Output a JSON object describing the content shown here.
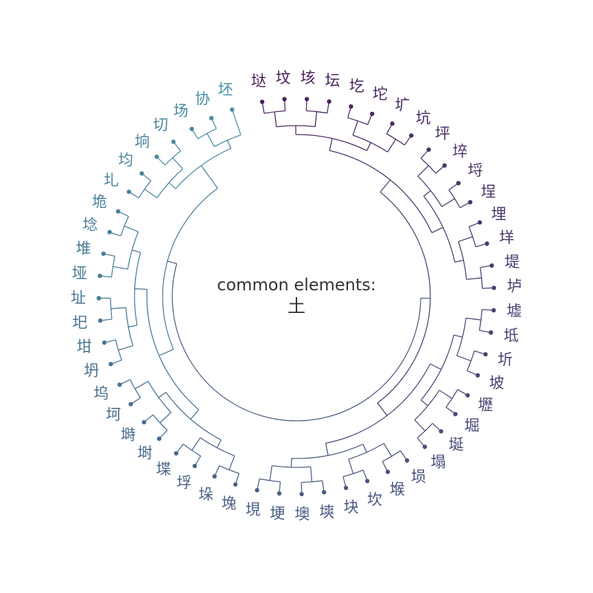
{
  "center": {
    "caption": "common elements:",
    "radical": "土"
  },
  "colors": {
    "start": "#4a1f5c",
    "end": "#4a8fa3",
    "text": "#333333"
  },
  "leaves": [
    "垯",
    "坟",
    "垓",
    "坛",
    "圪",
    "坨",
    "圹",
    "坑",
    "坪",
    "埣",
    "埒",
    "埕",
    "埋",
    "垟",
    "堤",
    "垆",
    "墟",
    "坻",
    "圻",
    "坡",
    "壢",
    "堀",
    "埏",
    "塌",
    "埙",
    "堠",
    "坎",
    "块",
    "塽",
    "墺",
    "埂",
    "垷",
    "堍",
    "垛",
    "垺",
    "堞",
    "埘",
    "塒",
    "坷",
    "坞",
    "坍",
    "坩",
    "圯",
    "址",
    "垭",
    "堆",
    "埝",
    "垝",
    "圠",
    "均",
    "垧",
    "切",
    "场",
    "协",
    "坯"
  ]
}
